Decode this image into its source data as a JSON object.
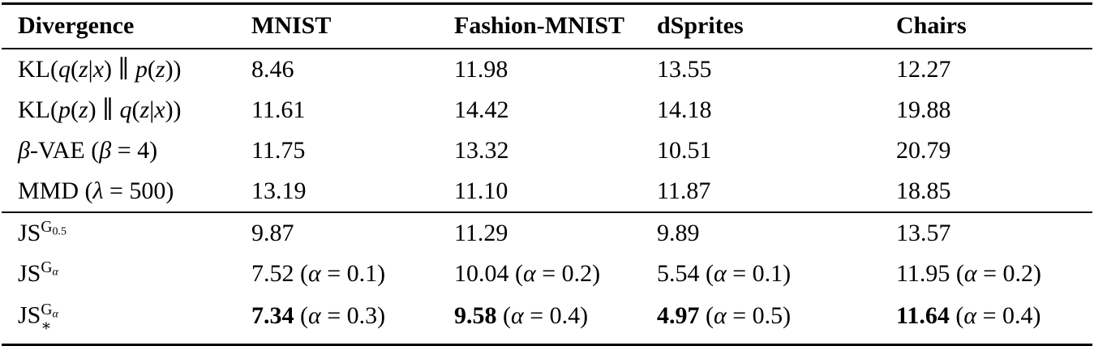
{
  "colors": {
    "text": "#000000",
    "background": "#ffffff",
    "rule": "#000000"
  },
  "table": {
    "columns": [
      {
        "id": "divergence",
        "label": "Divergence"
      },
      {
        "id": "mnist",
        "label": "MNIST"
      },
      {
        "id": "fashion-mnist",
        "label": "Fashion-MNIST"
      },
      {
        "id": "dsprites",
        "label": "dSprites"
      },
      {
        "id": "chairs",
        "label": "Chairs"
      }
    ],
    "groups": [
      {
        "rows": [
          {
            "name": "kl-q-p",
            "label_parts": [
              {
                "t": "KL("
              },
              {
                "s": "i",
                "t": "q"
              },
              {
                "t": "("
              },
              {
                "s": "i",
                "t": "z"
              },
              {
                "t": "|"
              },
              {
                "s": "i",
                "t": "x"
              },
              {
                "t": ") ∥ "
              },
              {
                "s": "i",
                "t": "p"
              },
              {
                "t": "("
              },
              {
                "s": "i",
                "t": "z"
              },
              {
                "t": "))"
              }
            ],
            "cells": [
              [
                {
                  "t": "8.46"
                }
              ],
              [
                {
                  "t": "11.98"
                }
              ],
              [
                {
                  "t": "13.55"
                }
              ],
              [
                {
                  "t": "12.27"
                }
              ]
            ]
          },
          {
            "name": "kl-p-q",
            "label_parts": [
              {
                "t": "KL("
              },
              {
                "s": "i",
                "t": "p"
              },
              {
                "t": "("
              },
              {
                "s": "i",
                "t": "z"
              },
              {
                "t": ") ∥ "
              },
              {
                "s": "i",
                "t": "q"
              },
              {
                "t": "("
              },
              {
                "s": "i",
                "t": "z"
              },
              {
                "t": "|"
              },
              {
                "s": "i",
                "t": "x"
              },
              {
                "t": "))"
              }
            ],
            "cells": [
              [
                {
                  "t": "11.61"
                }
              ],
              [
                {
                  "t": "14.42"
                }
              ],
              [
                {
                  "t": "14.18"
                }
              ],
              [
                {
                  "t": "19.88"
                }
              ]
            ]
          },
          {
            "name": "beta-vae",
            "label_parts": [
              {
                "s": "i",
                "t": "β"
              },
              {
                "t": "-VAE ("
              },
              {
                "s": "i",
                "t": "β"
              },
              {
                "t": " = 4)"
              }
            ],
            "cells": [
              [
                {
                  "t": "11.75"
                }
              ],
              [
                {
                  "t": "13.32"
                }
              ],
              [
                {
                  "t": "10.51"
                }
              ],
              [
                {
                  "t": "20.79"
                }
              ]
            ]
          },
          {
            "name": "mmd",
            "label_parts": [
              {
                "t": "MMD ("
              },
              {
                "s": "i",
                "t": "λ"
              },
              {
                "t": " = 500)"
              }
            ],
            "cells": [
              [
                {
                  "t": "13.19"
                }
              ],
              [
                {
                  "t": "11.10"
                }
              ],
              [
                {
                  "t": "11.87"
                }
              ],
              [
                {
                  "t": "18.85"
                }
              ]
            ]
          }
        ]
      },
      {
        "rows": [
          {
            "name": "js-g05",
            "label_parts": [
              {
                "t": "JS"
              },
              {
                "s": "sup",
                "parts": [
                  {
                    "t": "G"
                  },
                  {
                    "s": "sub",
                    "t": "0.5"
                  }
                ]
              }
            ],
            "cells": [
              [
                {
                  "t": "9.87"
                }
              ],
              [
                {
                  "t": "11.29"
                }
              ],
              [
                {
                  "t": "9.89"
                }
              ],
              [
                {
                  "t": "13.57"
                }
              ]
            ]
          },
          {
            "name": "js-g-alpha",
            "label_parts": [
              {
                "t": "JS"
              },
              {
                "s": "sup",
                "parts": [
                  {
                    "t": "G"
                  },
                  {
                    "s": "sub i",
                    "t": "α"
                  }
                ]
              }
            ],
            "cells": [
              [
                {
                  "t": "7.52 ("
                },
                {
                  "s": "i",
                  "t": "α"
                },
                {
                  "t": " = 0.1)"
                }
              ],
              [
                {
                  "t": "10.04 ("
                },
                {
                  "s": "i",
                  "t": "α"
                },
                {
                  "t": " = 0.2)"
                }
              ],
              [
                {
                  "t": "5.54 ("
                },
                {
                  "s": "i",
                  "t": "α"
                },
                {
                  "t": " = 0.1)"
                }
              ],
              [
                {
                  "t": "11.95 ("
                },
                {
                  "s": "i",
                  "t": "α"
                },
                {
                  "t": " = 0.2)"
                }
              ]
            ]
          },
          {
            "name": "js-g-alpha-star",
            "label_parts": [
              {
                "t": "JS"
              },
              {
                "stack": {
                  "top": [
                    {
                      "t": "G"
                    },
                    {
                      "s": "sub i",
                      "t": "α"
                    }
                  ],
                  "bot": [
                    {
                      "t": "∗"
                    }
                  ]
                }
              }
            ],
            "cells": [
              [
                {
                  "s": "b",
                  "t": "7.34"
                },
                {
                  "t": " ("
                },
                {
                  "s": "i",
                  "t": "α"
                },
                {
                  "t": " = 0.3)"
                }
              ],
              [
                {
                  "s": "b",
                  "t": "9.58"
                },
                {
                  "t": " ("
                },
                {
                  "s": "i",
                  "t": "α"
                },
                {
                  "t": " = 0.4)"
                }
              ],
              [
                {
                  "s": "b",
                  "t": "4.97"
                },
                {
                  "t": " ("
                },
                {
                  "s": "i",
                  "t": "α"
                },
                {
                  "t": " = 0.5)"
                }
              ],
              [
                {
                  "s": "b",
                  "t": "11.64"
                },
                {
                  "t": " ("
                },
                {
                  "s": "i",
                  "t": "α"
                },
                {
                  "t": " = 0.4)"
                }
              ]
            ]
          }
        ]
      }
    ]
  }
}
